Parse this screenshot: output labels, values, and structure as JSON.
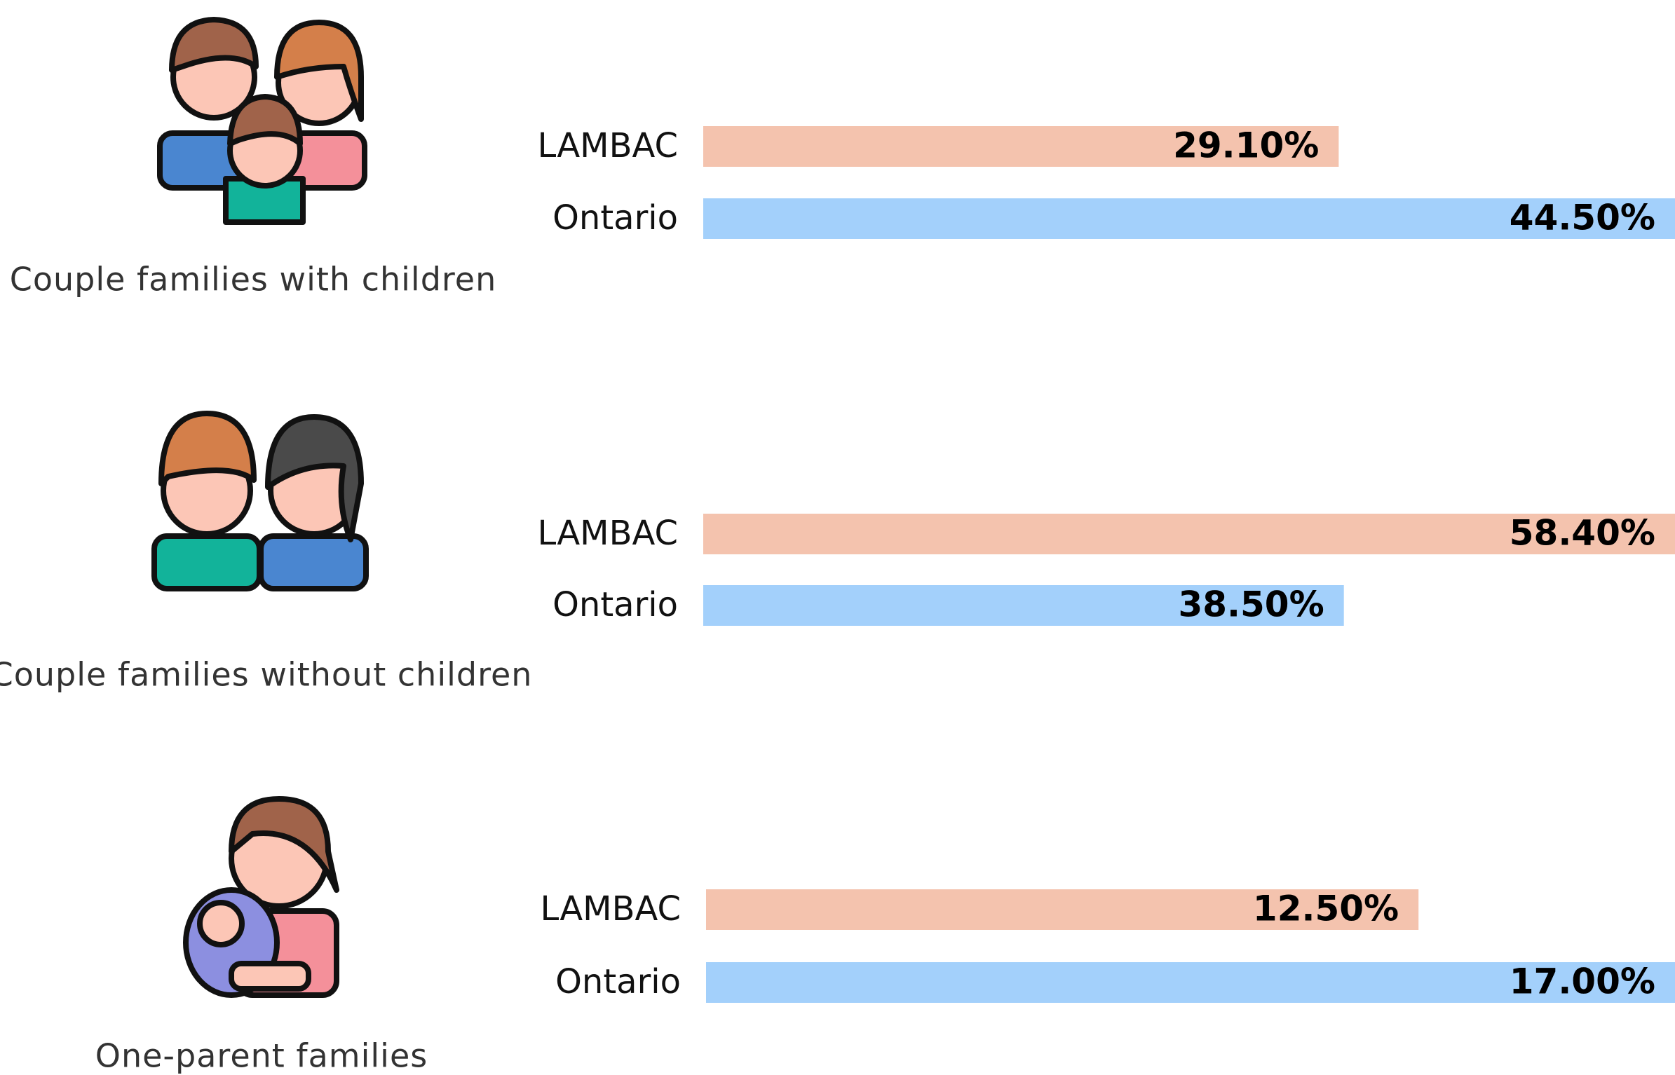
{
  "chart_data": [
    {
      "type": "bar",
      "title": "Couple families with children",
      "categories": [
        "LAMBAC",
        "Ontario"
      ],
      "values": [
        29.1,
        44.5
      ],
      "value_labels": [
        "29.10%",
        "44.50%"
      ],
      "colors": [
        "#f4c3ae",
        "#a3d0fb"
      ]
    },
    {
      "type": "bar",
      "title": "Couple families without children",
      "categories": [
        "LAMBAC",
        "Ontario"
      ],
      "values": [
        58.4,
        38.5
      ],
      "value_labels": [
        "58.40%",
        "38.50%"
      ],
      "colors": [
        "#f4c3ae",
        "#a3d0fb"
      ]
    },
    {
      "type": "bar",
      "title": "One-parent families",
      "categories": [
        "LAMBAC",
        "Ontario"
      ],
      "values": [
        12.5,
        17.0
      ],
      "value_labels": [
        "12.50%",
        "17.00%"
      ],
      "colors": [
        "#f4c3ae",
        "#a3d0fb"
      ]
    }
  ]
}
